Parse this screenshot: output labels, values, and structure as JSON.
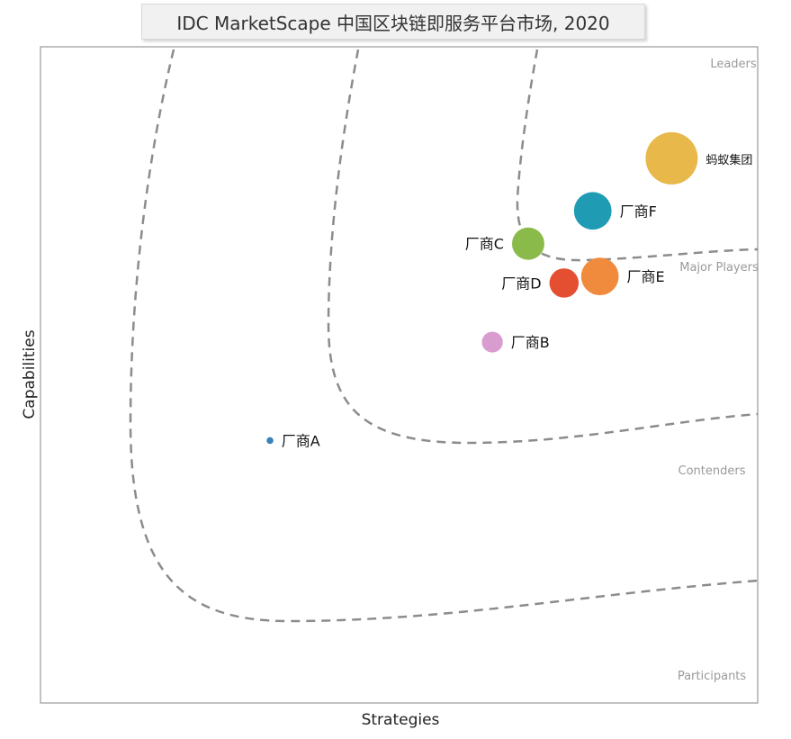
{
  "chart_data": {
    "type": "scatter",
    "title": "IDC MarketScape 中国区块链即服务平台市场, 2020",
    "xlabel": "Strategies",
    "ylabel": "Capabilities",
    "xlim": [
      0,
      100
    ],
    "ylim": [
      0,
      100
    ],
    "grid": false,
    "regions": [
      "Leaders",
      "Major Players",
      "Contenders",
      "Participants"
    ],
    "points": [
      {
        "name": "蚂蚁集团",
        "x": 88,
        "y": 83,
        "size": 1.0,
        "color": "#e8b84a"
      },
      {
        "name": "厂商F",
        "x": 77,
        "y": 75,
        "size": 0.72,
        "color": "#1f9bb4"
      },
      {
        "name": "厂商C",
        "x": 68,
        "y": 70,
        "size": 0.62,
        "color": "#8aba4a"
      },
      {
        "name": "厂商E",
        "x": 78,
        "y": 65,
        "size": 0.72,
        "color": "#f08a3c"
      },
      {
        "name": "厂商D",
        "x": 73,
        "y": 64,
        "size": 0.56,
        "color": "#e44f32"
      },
      {
        "name": "厂商B",
        "x": 63,
        "y": 55,
        "size": 0.4,
        "color": "#d99ccf"
      },
      {
        "name": "厂商A",
        "x": 32,
        "y": 40,
        "size": 0.13,
        "color": "#3a82b8"
      }
    ]
  }
}
